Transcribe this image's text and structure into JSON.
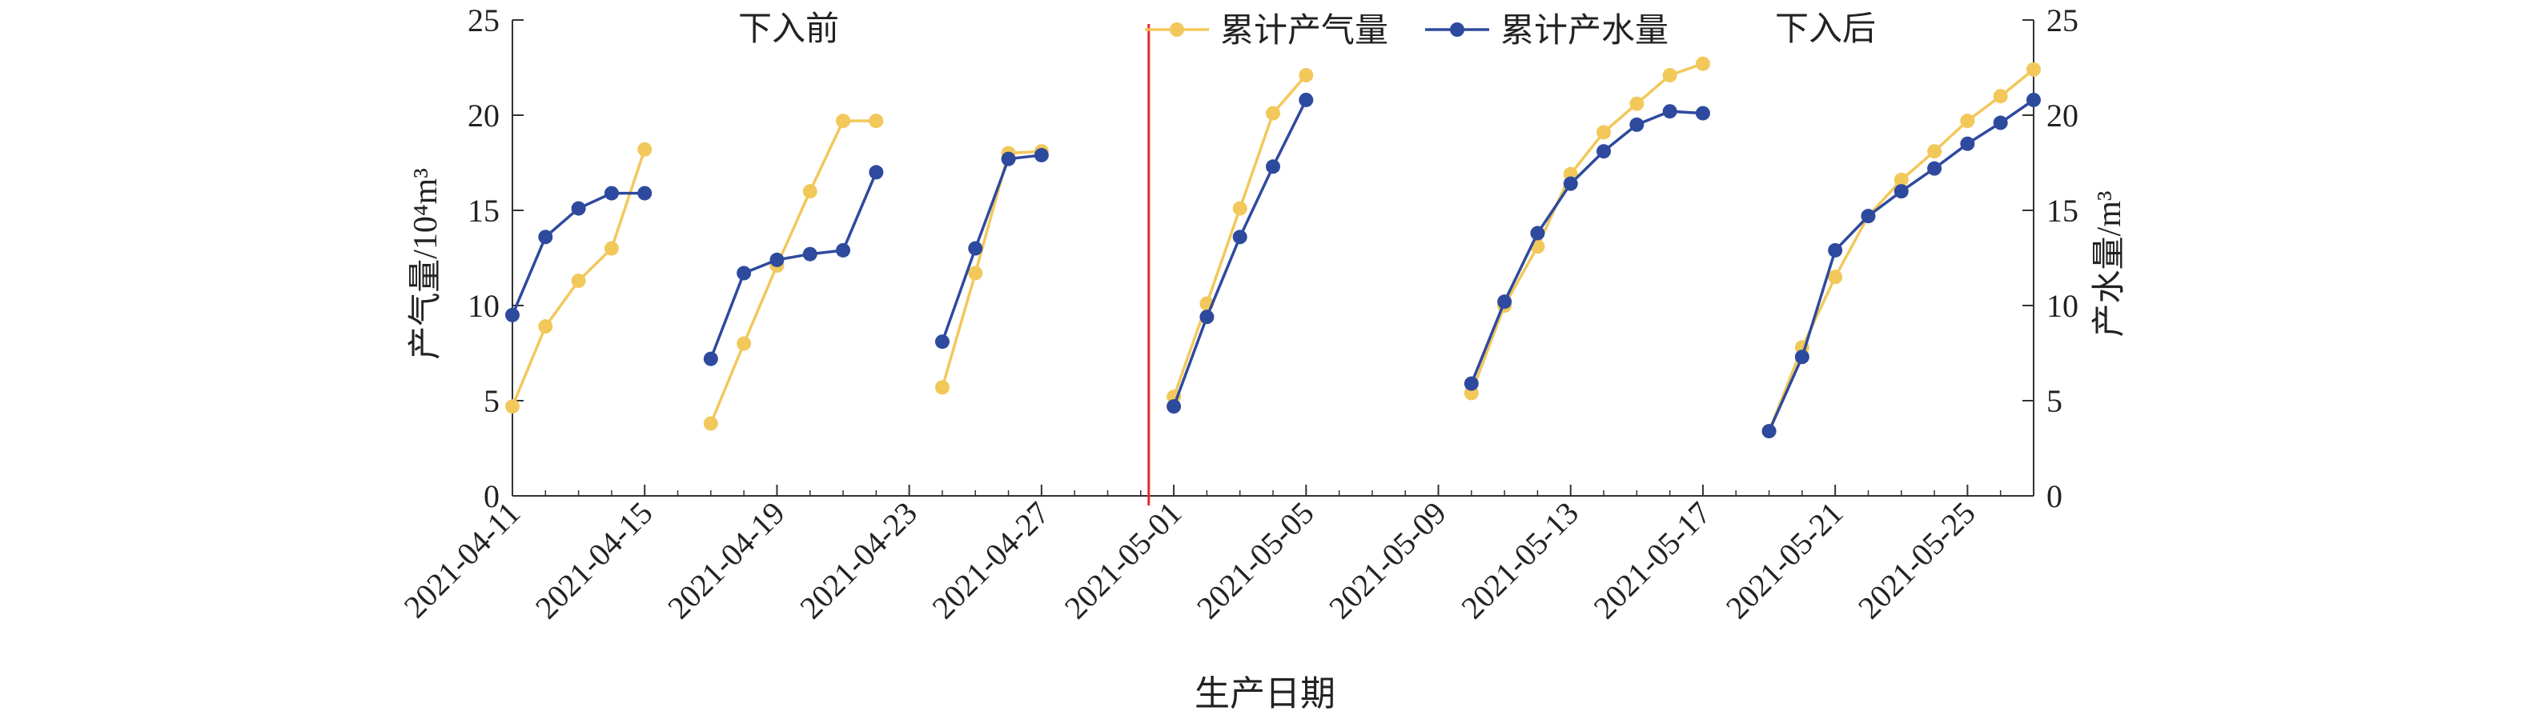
{
  "chart_data": {
    "type": "line",
    "annotations": [
      "下入前",
      "下入后"
    ],
    "xlabel": "生产日期",
    "ylabel_left": "产气量/10⁴m³",
    "ylabel_right": "产水量/m³",
    "ylim_left": [
      0,
      25
    ],
    "ylim_right": [
      0,
      25
    ],
    "yticks_left": [
      "0",
      "5",
      "10",
      "15",
      "20",
      "25"
    ],
    "yticks_right": [
      "0",
      "5",
      "10",
      "15",
      "20",
      "25"
    ],
    "xlim": [
      "2021-04-11",
      "2021-05-27"
    ],
    "xtick_labels": [
      "2021-04-11",
      "2021-04-15",
      "2021-04-19",
      "2021-04-23",
      "2021-04-27",
      "2021-05-01",
      "2021-05-05",
      "2021-05-09",
      "2021-05-13",
      "2021-05-17",
      "2021-05-21",
      "2021-05-25"
    ],
    "marker_date": "2021-04-30",
    "legend_position": "top",
    "colors": {
      "gas": "#f2c85b",
      "water": "#2e4a9e",
      "marker": "#e8282b",
      "axis": "#333333"
    },
    "series": [
      {
        "name": "累计产气量",
        "axis": "left",
        "segments": [
          [
            [
              "2021-04-11",
              4.7
            ],
            [
              "2021-04-12",
              8.9
            ],
            [
              "2021-04-13",
              11.3
            ],
            [
              "2021-04-14",
              13.0
            ],
            [
              "2021-04-15",
              18.2
            ]
          ],
          [
            [
              "2021-04-17",
              3.8
            ],
            [
              "2021-04-18",
              8.0
            ],
            [
              "2021-04-19",
              12.1
            ],
            [
              "2021-04-20",
              16.0
            ],
            [
              "2021-04-21",
              19.7
            ],
            [
              "2021-04-22",
              19.7
            ]
          ],
          [
            [
              "2021-04-24",
              5.7
            ],
            [
              "2021-04-25",
              11.7
            ],
            [
              "2021-04-26",
              18.0
            ],
            [
              "2021-04-27",
              18.1
            ]
          ],
          [
            [
              "2021-05-01",
              5.2
            ],
            [
              "2021-05-02",
              10.1
            ],
            [
              "2021-05-03",
              15.1
            ],
            [
              "2021-05-04",
              20.1
            ],
            [
              "2021-05-05",
              22.1
            ]
          ],
          [
            [
              "2021-05-10",
              5.4
            ],
            [
              "2021-05-11",
              10.0
            ],
            [
              "2021-05-12",
              13.1
            ],
            [
              "2021-05-13",
              16.9
            ],
            [
              "2021-05-14",
              19.1
            ],
            [
              "2021-05-15",
              20.6
            ],
            [
              "2021-05-16",
              22.1
            ],
            [
              "2021-05-17",
              22.7
            ]
          ],
          [
            [
              "2021-05-19",
              3.4
            ],
            [
              "2021-05-20",
              7.8
            ],
            [
              "2021-05-21",
              11.5
            ],
            [
              "2021-05-22",
              14.7
            ],
            [
              "2021-05-23",
              16.6
            ],
            [
              "2021-05-24",
              18.1
            ],
            [
              "2021-05-25",
              19.7
            ],
            [
              "2021-05-26",
              21.0
            ],
            [
              "2021-05-27",
              22.4
            ]
          ]
        ]
      },
      {
        "name": "累计产水量",
        "axis": "right",
        "segments": [
          [
            [
              "2021-04-11",
              9.5
            ],
            [
              "2021-04-12",
              13.6
            ],
            [
              "2021-04-13",
              15.1
            ],
            [
              "2021-04-14",
              15.9
            ],
            [
              "2021-04-15",
              15.9
            ]
          ],
          [
            [
              "2021-04-17",
              7.2
            ],
            [
              "2021-04-18",
              11.7
            ],
            [
              "2021-04-19",
              12.4
            ],
            [
              "2021-04-20",
              12.7
            ],
            [
              "2021-04-21",
              12.9
            ],
            [
              "2021-04-22",
              17.0
            ]
          ],
          [
            [
              "2021-04-24",
              8.1
            ],
            [
              "2021-04-25",
              13.0
            ],
            [
              "2021-04-26",
              17.7
            ],
            [
              "2021-04-27",
              17.9
            ]
          ],
          [
            [
              "2021-05-01",
              4.7
            ],
            [
              "2021-05-02",
              9.4
            ],
            [
              "2021-05-03",
              13.6
            ],
            [
              "2021-05-04",
              17.3
            ],
            [
              "2021-05-05",
              20.8
            ]
          ],
          [
            [
              "2021-05-10",
              5.9
            ],
            [
              "2021-05-11",
              10.2
            ],
            [
              "2021-05-12",
              13.8
            ],
            [
              "2021-05-13",
              16.4
            ],
            [
              "2021-05-14",
              18.1
            ],
            [
              "2021-05-15",
              19.5
            ],
            [
              "2021-05-16",
              20.2
            ],
            [
              "2021-05-17",
              20.1
            ]
          ],
          [
            [
              "2021-05-19",
              3.4
            ],
            [
              "2021-05-20",
              7.3
            ],
            [
              "2021-05-21",
              12.9
            ],
            [
              "2021-05-22",
              14.7
            ],
            [
              "2021-05-23",
              16.0
            ],
            [
              "2021-05-24",
              17.2
            ],
            [
              "2021-05-25",
              18.5
            ],
            [
              "2021-05-26",
              19.6
            ],
            [
              "2021-05-27",
              20.8
            ]
          ]
        ]
      }
    ]
  }
}
